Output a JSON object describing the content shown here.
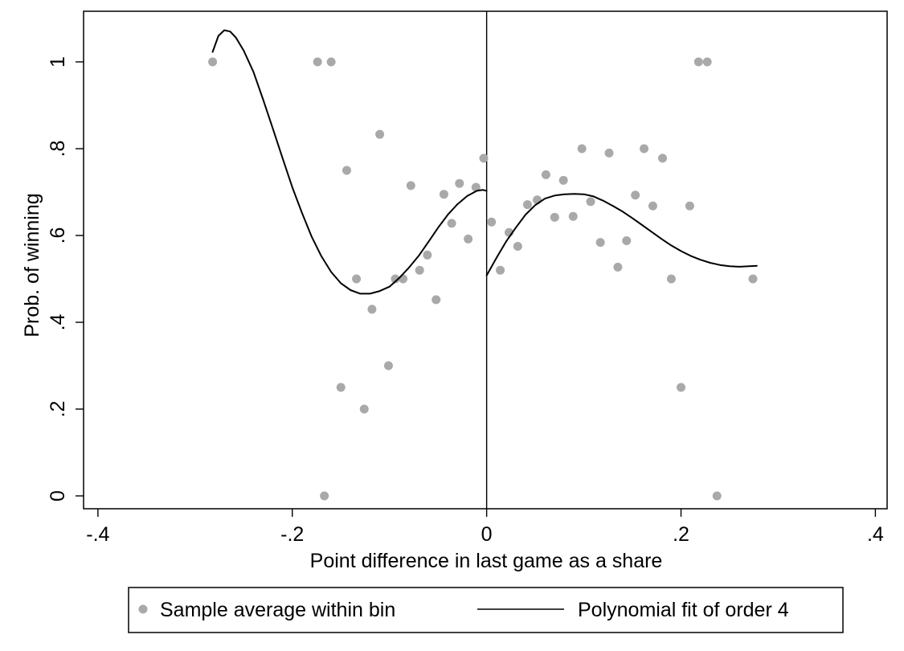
{
  "chart_data": {
    "type": "scatter",
    "xlabel": "Point difference in last game as a share",
    "ylabel": "Prob. of winning",
    "xlim": [
      -0.4,
      0.4
    ],
    "ylim": [
      0,
      1.1
    ],
    "x_ticks": [
      -0.4,
      -0.2,
      0,
      0.2,
      0.4
    ],
    "x_tick_labels": [
      "-.4",
      "-.2",
      "0",
      ".2",
      ".4"
    ],
    "y_ticks": [
      0,
      0.2,
      0.4,
      0.6,
      0.8,
      1
    ],
    "y_tick_labels": [
      "0",
      ".2",
      ".4",
      ".6",
      ".8",
      "1"
    ],
    "grid": false,
    "legend_position": "bottom",
    "colors": {
      "points": "#a9a9a9",
      "fit": "#000000"
    },
    "vertical_line_x": 0,
    "series": [
      {
        "name": "Sample average within bin",
        "kind": "points",
        "points": [
          [
            -0.282,
            1.0
          ],
          [
            -0.174,
            1.0
          ],
          [
            -0.16,
            1.0
          ],
          [
            -0.167,
            0.0
          ],
          [
            -0.15,
            0.25
          ],
          [
            -0.144,
            0.75
          ],
          [
            -0.134,
            0.5
          ],
          [
            -0.126,
            0.2
          ],
          [
            -0.118,
            0.43
          ],
          [
            -0.11,
            0.833
          ],
          [
            -0.101,
            0.3
          ],
          [
            -0.094,
            0.5
          ],
          [
            -0.086,
            0.5
          ],
          [
            -0.078,
            0.715
          ],
          [
            -0.069,
            0.52
          ],
          [
            -0.061,
            0.555
          ],
          [
            -0.052,
            0.452
          ],
          [
            -0.044,
            0.695
          ],
          [
            -0.036,
            0.628
          ],
          [
            -0.028,
            0.72
          ],
          [
            -0.019,
            0.592
          ],
          [
            -0.011,
            0.711
          ],
          [
            -0.003,
            0.778
          ],
          [
            0.005,
            0.631
          ],
          [
            0.014,
            0.52
          ],
          [
            0.023,
            0.607
          ],
          [
            0.032,
            0.575
          ],
          [
            0.042,
            0.671
          ],
          [
            0.052,
            0.682
          ],
          [
            0.061,
            0.74
          ],
          [
            0.07,
            0.642
          ],
          [
            0.079,
            0.727
          ],
          [
            0.089,
            0.644
          ],
          [
            0.098,
            0.8
          ],
          [
            0.107,
            0.678
          ],
          [
            0.117,
            0.584
          ],
          [
            0.126,
            0.79
          ],
          [
            0.135,
            0.527
          ],
          [
            0.144,
            0.588
          ],
          [
            0.153,
            0.693
          ],
          [
            0.162,
            0.8
          ],
          [
            0.171,
            0.668
          ],
          [
            0.181,
            0.778
          ],
          [
            0.19,
            0.5
          ],
          [
            0.2,
            0.25
          ],
          [
            0.209,
            0.668
          ],
          [
            0.218,
            1.0
          ],
          [
            0.227,
            1.0
          ],
          [
            0.237,
            0.0
          ],
          [
            0.274,
            0.5
          ]
        ]
      },
      {
        "name": "Polynomial fit of order 4",
        "kind": "line",
        "segments": [
          [
            [
              -0.282,
              1.023
            ],
            [
              -0.276,
              1.06
            ],
            [
              -0.27,
              1.073
            ],
            [
              -0.264,
              1.07
            ],
            [
              -0.258,
              1.056
            ],
            [
              -0.25,
              1.026
            ],
            [
              -0.24,
              0.977
            ],
            [
              -0.23,
              0.913
            ],
            [
              -0.22,
              0.846
            ],
            [
              -0.21,
              0.778
            ],
            [
              -0.2,
              0.711
            ],
            [
              -0.19,
              0.652
            ],
            [
              -0.18,
              0.597
            ],
            [
              -0.17,
              0.552
            ],
            [
              -0.16,
              0.516
            ],
            [
              -0.15,
              0.49
            ],
            [
              -0.14,
              0.474
            ],
            [
              -0.13,
              0.466
            ],
            [
              -0.12,
              0.466
            ],
            [
              -0.11,
              0.472
            ],
            [
              -0.1,
              0.482
            ],
            [
              -0.09,
              0.502
            ],
            [
              -0.08,
              0.526
            ],
            [
              -0.07,
              0.553
            ],
            [
              -0.06,
              0.585
            ],
            [
              -0.05,
              0.618
            ],
            [
              -0.04,
              0.648
            ],
            [
              -0.03,
              0.672
            ],
            [
              -0.02,
              0.691
            ],
            [
              -0.01,
              0.703
            ],
            [
              -0.004,
              0.705
            ],
            [
              0.0,
              0.703
            ]
          ],
          [
            [
              0.0,
              0.508
            ],
            [
              0.01,
              0.548
            ],
            [
              0.02,
              0.586
            ],
            [
              0.03,
              0.618
            ],
            [
              0.04,
              0.648
            ],
            [
              0.05,
              0.67
            ],
            [
              0.06,
              0.685
            ],
            [
              0.07,
              0.692
            ],
            [
              0.08,
              0.695
            ],
            [
              0.09,
              0.696
            ],
            [
              0.1,
              0.695
            ],
            [
              0.11,
              0.69
            ],
            [
              0.12,
              0.68
            ],
            [
              0.13,
              0.668
            ],
            [
              0.14,
              0.655
            ],
            [
              0.15,
              0.64
            ],
            [
              0.16,
              0.624
            ],
            [
              0.17,
              0.608
            ],
            [
              0.18,
              0.592
            ],
            [
              0.19,
              0.577
            ],
            [
              0.2,
              0.564
            ],
            [
              0.21,
              0.553
            ],
            [
              0.22,
              0.544
            ],
            [
              0.23,
              0.537
            ],
            [
              0.24,
              0.532
            ],
            [
              0.25,
              0.529
            ],
            [
              0.26,
              0.528
            ],
            [
              0.27,
              0.529
            ],
            [
              0.278,
              0.53
            ]
          ]
        ]
      }
    ]
  }
}
